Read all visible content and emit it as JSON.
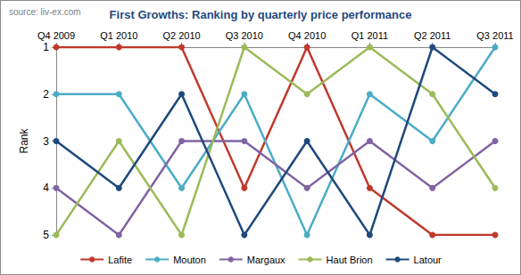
{
  "chart_data": {
    "type": "line",
    "title": "First Growths: Ranking by quarterly price performance",
    "annotations": [
      "source: liv-ex.com"
    ],
    "y_label": "Rank",
    "categories": [
      "Q4 2009",
      "Q1 2010",
      "Q2 2010",
      "Q3 2010",
      "Q4 2010",
      "Q1 2011",
      "Q2 2011",
      "Q3 2011"
    ],
    "series": [
      {
        "name": "Lafite",
        "color": "#c0392b",
        "values": [
          1,
          1,
          1,
          4,
          1,
          4,
          5,
          5
        ]
      },
      {
        "name": "Mouton",
        "color": "#4bacc6",
        "values": [
          2,
          2,
          4,
          2,
          5,
          2,
          3,
          1
        ]
      },
      {
        "name": "Margaux",
        "color": "#8064a2",
        "values": [
          4,
          5,
          3,
          3,
          4,
          3,
          4,
          3
        ]
      },
      {
        "name": "Haut Brion",
        "color": "#9bbb59",
        "values": [
          5,
          3,
          5,
          1,
          2,
          1,
          2,
          4
        ]
      },
      {
        "name": "Latour",
        "color": "#1f497d",
        "values": [
          3,
          4,
          2,
          5,
          3,
          5,
          1,
          2
        ]
      }
    ],
    "ylim": [
      1,
      5
    ],
    "yticks": [
      1,
      2,
      3,
      4,
      5
    ],
    "y_inverted": true,
    "grid": false,
    "legend": "bottom",
    "marker": "circle"
  }
}
